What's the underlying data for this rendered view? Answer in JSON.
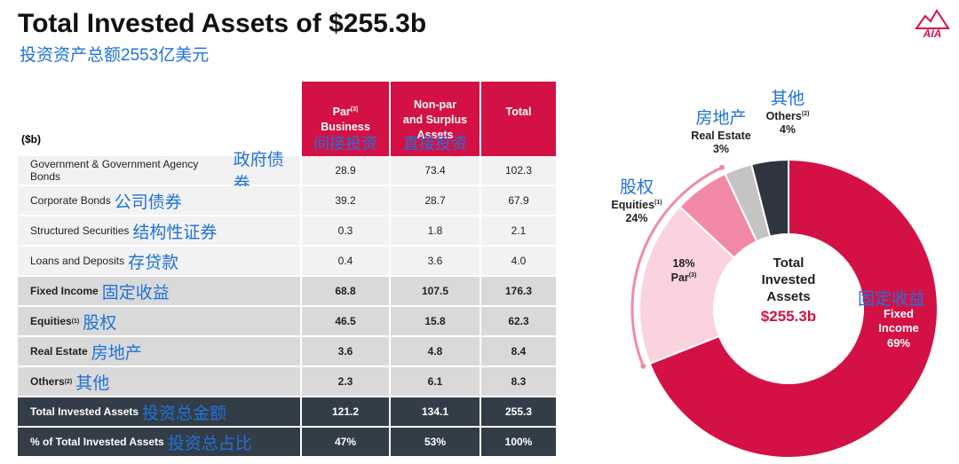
{
  "header": {
    "title": "Total Invested Assets of $255.3b",
    "subtitle": "投资资产总额2553亿美元",
    "logo": "AIA"
  },
  "table": {
    "unit": "($b)",
    "columns": [
      {
        "lines": [
          "Par",
          "Business"
        ],
        "sup": "(3)",
        "annotation": "间接投资"
      },
      {
        "lines": [
          "Non-par",
          "and Surplus",
          "Assets"
        ],
        "annotation": "直接投资"
      },
      {
        "lines": [
          "Total"
        ]
      }
    ],
    "rows": [
      {
        "label": "Government & Government Agency Bonds",
        "annotation": "政府债券",
        "cells": [
          "28.9",
          "73.4",
          "102.3"
        ]
      },
      {
        "label": "Corporate Bonds",
        "annotation": "公司债券",
        "cells": [
          "39.2",
          "28.7",
          "67.9"
        ]
      },
      {
        "label": "Structured Securities",
        "annotation": "结构性证券",
        "cells": [
          "0.3",
          "1.8",
          "2.1"
        ]
      },
      {
        "label": "Loans and Deposits",
        "annotation": "存贷款",
        "cells": [
          "0.4",
          "3.6",
          "4.0"
        ]
      },
      {
        "label": "Fixed Income",
        "annotation": "固定收益",
        "cells": [
          "68.8",
          "107.5",
          "176.3"
        ]
      },
      {
        "label": "Equities",
        "sup": "(1)",
        "annotation": "股权",
        "cells": [
          "46.5",
          "15.8",
          "62.3"
        ]
      },
      {
        "label": "Real Estate",
        "annotation": "房地产",
        "cells": [
          "3.6",
          "4.8",
          "8.4"
        ]
      },
      {
        "label": "Others",
        "sup": "(2)",
        "annotation": "其他",
        "cells": [
          "2.3",
          "6.1",
          "8.3"
        ]
      },
      {
        "label": "Total Invested Assets",
        "annotation": "投资总金额",
        "cells": [
          "121.2",
          "134.1",
          "255.3"
        ]
      },
      {
        "label": "% of Total Invested Assets",
        "annotation": "投资总占比",
        "cells": [
          "47%",
          "53%",
          "100%"
        ]
      }
    ]
  },
  "chart_data": {
    "type": "donut",
    "center_text": "Total Invested Assets",
    "center_value": "$255.3b",
    "categories": [
      "Fixed Income",
      "Par",
      null,
      "Real Estate",
      "Others"
    ],
    "sups": [
      null,
      "(3)",
      null,
      null,
      "(2)"
    ],
    "annotations": [
      "固定收益",
      null,
      null,
      "房地产",
      "其他"
    ],
    "values": [
      69,
      18,
      6,
      3,
      4
    ],
    "value_labels": [
      "69%",
      "18%",
      null,
      "3%",
      "4%"
    ],
    "colors": [
      "#d31145",
      "#fbd3df",
      "#f28aa7",
      "#c4c4c4",
      "#2e3540"
    ],
    "equities": {
      "name": "Equities",
      "sup": "(1)",
      "annotation": "股权",
      "value": 24,
      "value_label": "24%",
      "color": "#f28aa7"
    }
  }
}
